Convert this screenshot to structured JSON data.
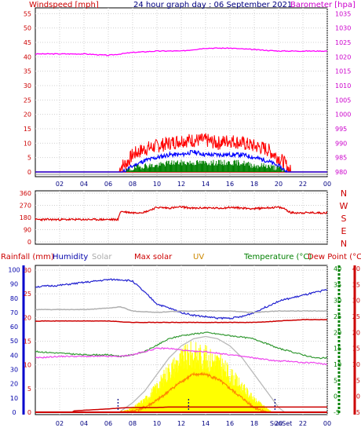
{
  "header": {
    "title": "24 hour graph day : 06 September 2021",
    "left_label": "Windspeed [mph]",
    "right_label": "Barometer [hpa]"
  },
  "lower_header": {
    "rainfall": "Rainfall (mm)",
    "humidity": "Humidity",
    "solar": "Solar",
    "max_solar": "Max solar",
    "uv": "UV",
    "temperature": "Temperature (°C)",
    "dewpoint": "Dew Point (°C)"
  },
  "colors": {
    "windspeed": "#ff0000",
    "gust_avg": "#0000ff",
    "wind_low": "#008000",
    "barometer": "#ff00ff",
    "humidity": "#2020d0",
    "solar_gray": "#b0b0b0",
    "max_solar_red": "#cc0000",
    "temperature": "#339933",
    "dewpoint": "#ee44ee",
    "solar_fill": "#ffff00",
    "uv": "#ff8800",
    "rain_axis": "#0000cc",
    "temp_axis": "#008000",
    "dew_axis": "#cc0000"
  },
  "chart_data": [
    {
      "type": "line",
      "name": "windspeed-barometer",
      "x_ticks": [
        "02",
        "04",
        "06",
        "08",
        "10",
        "12",
        "14",
        "16",
        "18",
        "20",
        "22",
        "00"
      ],
      "y_left_ticks": [
        "0",
        "5",
        "10",
        "15",
        "20",
        "25",
        "30",
        "35",
        "40",
        "45",
        "50",
        "55"
      ],
      "y_right_ticks": [
        "980",
        "985",
        "990",
        "995",
        "1000",
        "1005",
        "1010",
        "1015",
        "1020",
        "1025",
        "1030",
        "1035"
      ],
      "ylim_left": [
        0,
        57
      ],
      "ylim_right": [
        980,
        1037
      ],
      "series": [
        {
          "name": "Barometer",
          "axis": "right",
          "x": [
            0,
            2,
            4,
            6,
            7,
            8,
            10,
            12,
            14,
            16,
            18,
            20,
            22,
            24
          ],
          "values": [
            1021,
            1021,
            1021,
            1020.5,
            1021,
            1021.5,
            1022,
            1022,
            1023,
            1023,
            1022.5,
            1022,
            1022,
            1022
          ]
        },
        {
          "name": "Windspeed",
          "axis": "left",
          "x": [
            0,
            6.9,
            7.0,
            7.5,
            8,
            9,
            10,
            11,
            12,
            13,
            14,
            15,
            16,
            17,
            18,
            19,
            20,
            20.5,
            21,
            24
          ],
          "values": [
            0,
            0,
            2,
            3,
            6,
            8,
            9,
            10,
            11,
            11,
            11,
            10,
            11,
            10,
            9,
            8,
            5,
            3,
            0,
            0
          ]
        },
        {
          "name": "Average",
          "axis": "left",
          "x": [
            0,
            7.2,
            8,
            9,
            10,
            11,
            12,
            13,
            14,
            15,
            16,
            17,
            18,
            19,
            20,
            20.7,
            24
          ],
          "values": [
            0,
            0,
            2,
            4,
            5,
            6,
            6,
            7,
            6,
            6,
            6,
            6,
            5,
            4,
            2,
            0,
            0
          ]
        },
        {
          "name": "Low",
          "axis": "left",
          "x": [
            0,
            7.5,
            8,
            9,
            10,
            11,
            12,
            13,
            14,
            15,
            16,
            17,
            18,
            19,
            20,
            20.5,
            24
          ],
          "values": [
            0,
            0,
            1,
            2,
            2,
            3,
            3,
            3,
            3,
            3,
            3,
            3,
            2,
            2,
            1,
            0,
            0
          ]
        }
      ]
    },
    {
      "type": "line",
      "name": "wind-direction",
      "x_ticks": [
        "02",
        "04",
        "06",
        "08",
        "10",
        "12",
        "14",
        "16",
        "18",
        "20",
        "22",
        "00"
      ],
      "y_left_ticks": [
        "0",
        "90",
        "180",
        "270",
        "360"
      ],
      "y_right_ticks": [
        "N",
        "E",
        "S",
        "W",
        "N"
      ],
      "ylim": [
        0,
        360
      ],
      "series": [
        {
          "name": "Direction",
          "x": [
            0,
            6.8,
            7.0,
            8,
            9,
            10,
            11,
            12,
            13,
            14,
            15,
            16,
            17,
            18,
            19,
            20,
            20.5,
            21,
            24
          ],
          "values": [
            165,
            165,
            225,
            215,
            220,
            255,
            250,
            258,
            248,
            252,
            248,
            255,
            250,
            245,
            252,
            255,
            245,
            215,
            215
          ]
        }
      ]
    },
    {
      "type": "line",
      "name": "rain-humidity-solar-temperature",
      "x_ticks": [
        "02",
        "04",
        "06",
        "08",
        "10",
        "12",
        "14",
        "16",
        "18",
        "20",
        "22",
        "00"
      ],
      "rain_ticks": [
        "0",
        "5",
        "10",
        "15",
        "20",
        "25",
        "30"
      ],
      "humidity_ticks": [
        "0",
        "10",
        "20",
        "30",
        "40",
        "50",
        "60",
        "70",
        "80",
        "90",
        "100"
      ],
      "temperature_ticks": [
        "-5",
        "0",
        "5",
        "10",
        "15",
        "20",
        "25",
        "30",
        "35",
        "40"
      ],
      "dewpoint_ticks": [
        "-5",
        "0",
        "5",
        "10",
        "15",
        "20",
        "25",
        "30",
        "35",
        "40"
      ],
      "sun_label": "SunSet",
      "series": [
        {
          "name": "Humidity",
          "axis": "humidity",
          "x": [
            0,
            2,
            4,
            6,
            7,
            8,
            9,
            10,
            11,
            12,
            13,
            14,
            15,
            16,
            17,
            18,
            19,
            20,
            21,
            22,
            23,
            24
          ],
          "values": [
            88,
            89,
            91,
            93,
            93,
            92,
            84,
            76,
            73,
            70,
            68,
            67,
            66,
            66,
            67,
            70,
            74,
            78,
            80,
            82,
            84,
            86
          ]
        },
        {
          "name": "Solar",
          "axis": "humidity",
          "x": [
            0,
            4,
            6,
            7,
            8,
            10,
            12,
            14,
            16,
            18,
            20,
            22,
            24
          ],
          "values": [
            72,
            72,
            73,
            74,
            71,
            70,
            71,
            71,
            71,
            70,
            71,
            71,
            71
          ]
        },
        {
          "name": "Max solar",
          "axis": "humidity",
          "x": [
            0,
            4,
            6,
            8,
            10,
            12,
            14,
            16,
            18,
            20,
            22,
            24
          ],
          "values": [
            64,
            64,
            64,
            63,
            63,
            63,
            63,
            63,
            63,
            64,
            65,
            65
          ]
        },
        {
          "name": "Temperature",
          "axis": "temperature",
          "x": [
            0,
            2,
            4,
            6,
            7,
            8,
            9,
            10,
            11,
            12,
            13,
            14,
            15,
            16,
            17,
            18,
            19,
            20,
            21,
            22,
            23,
            24
          ],
          "values": [
            14,
            13.5,
            13,
            13,
            12.5,
            13,
            14,
            16,
            18,
            19,
            19.5,
            20,
            19.5,
            19,
            18.5,
            18,
            16.5,
            15,
            14,
            13,
            12,
            12
          ]
        },
        {
          "name": "Dew Point",
          "axis": "temperature",
          "x": [
            0,
            2,
            4,
            6,
            7,
            8,
            9,
            10,
            11,
            12,
            13,
            14,
            15,
            16,
            17,
            18,
            19,
            20,
            21,
            22,
            23,
            24
          ],
          "values": [
            12,
            12.5,
            12.5,
            12.5,
            12.5,
            13,
            14,
            15,
            15,
            14.5,
            14,
            14,
            13.5,
            13,
            12.5,
            12,
            11.5,
            11,
            11,
            10.5,
            10.5,
            10
          ]
        },
        {
          "name": "Solar radiation",
          "axis": "rain",
          "x": [
            6.8,
            7.5,
            8,
            9,
            10,
            11,
            12,
            13,
            14,
            15,
            16,
            17,
            18,
            19,
            19.5
          ],
          "values": [
            0,
            0.5,
            1,
            3,
            6,
            10,
            12.5,
            14,
            13,
            12,
            9,
            6,
            3,
            1,
            0
          ]
        },
        {
          "name": "UV",
          "axis": "rain",
          "x": [
            7,
            8,
            9,
            10,
            11,
            12,
            13,
            14,
            15,
            16,
            17,
            18,
            19
          ],
          "values": [
            0,
            0.2,
            1,
            2.5,
            4.5,
            6.5,
            8,
            8,
            7,
            5,
            3,
            1,
            0
          ]
        },
        {
          "name": "Max solar curve",
          "axis": "rain",
          "x": [
            6.9,
            8,
            9,
            10,
            11,
            12,
            13,
            14,
            15,
            16,
            17,
            18,
            19,
            20,
            20.5
          ],
          "values": [
            0,
            2,
            4.5,
            8,
            11.5,
            14,
            15.5,
            16,
            15.5,
            14,
            11.5,
            8,
            4.5,
            1,
            0
          ]
        },
        {
          "name": "Rainfall",
          "axis": "rain",
          "x": [
            0,
            3,
            3.2,
            6,
            7,
            8,
            9,
            10,
            11,
            12,
            13,
            14,
            15,
            16,
            17,
            18,
            19,
            20,
            21,
            22,
            23,
            24
          ],
          "values": [
            0,
            0,
            0.3,
            0.7,
            0.9,
            1,
            1,
            1,
            1.1,
            1.1,
            1.1,
            1.1,
            1.1,
            1.1,
            1.1,
            1.1,
            1.1,
            1.1,
            1.1,
            1.1,
            1.1,
            1.1
          ]
        }
      ]
    }
  ]
}
